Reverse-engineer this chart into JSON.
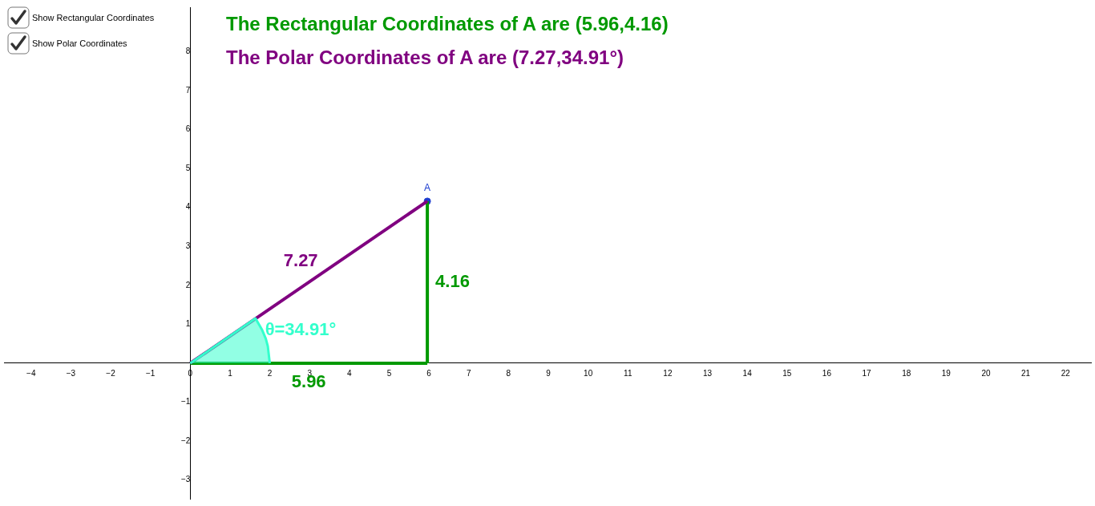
{
  "chart_data": {
    "type": "line",
    "title": "The Rectangular Coordinates of A are (5.96,4.16)",
    "subtitle": "The Polar Coordinates of A are (7.27,34.91°)",
    "annotations": [
      "Show Rectangular Coordinates",
      "Show Polar Coordinates",
      {
        "text": "7.27",
        "x": 2.98,
        "y": 2.08
      },
      {
        "text": "4.16",
        "x": 5.96,
        "y": 2.08
      },
      {
        "text": "5.96",
        "x": 2.98,
        "y": 0
      },
      {
        "text": "θ=34.91°",
        "x": 1.8,
        "y": 0.87
      }
    ],
    "xlim": [
      -4.68,
      22.64
    ],
    "ylim": [
      -3.48,
      9.14
    ],
    "xticks": [
      {
        "value": -4,
        "label": "−4"
      },
      {
        "value": -3,
        "label": "−3"
      },
      {
        "value": -2,
        "label": "−2"
      },
      {
        "value": -1,
        "label": "−1"
      },
      0,
      1,
      2,
      3,
      4,
      5,
      6,
      7,
      8,
      9,
      10,
      11,
      12,
      13,
      14,
      15,
      16,
      17,
      18,
      19,
      20,
      21,
      22
    ],
    "yticks": [
      {
        "value": -3,
        "label": "−3"
      },
      {
        "value": -2,
        "label": "−2"
      },
      {
        "value": -1,
        "label": "−1"
      },
      1,
      2,
      3,
      4,
      5,
      6,
      7,
      8
    ],
    "grid": false,
    "legend": false,
    "series": [
      {
        "type": "area",
        "color": "#33ffcc",
        "x": [
          0,
          1.64,
          1.8,
          1.9,
          1.95,
          2
        ],
        "values": [
          0,
          1.15,
          0.87,
          0.63,
          0.44,
          0
        ]
      },
      {
        "color": "#800080",
        "x": [
          0,
          5.96
        ],
        "values": [
          0,
          4.16
        ]
      },
      {
        "color": "#009900",
        "x": [
          0,
          5.96
        ],
        "values": [
          0,
          0
        ]
      },
      {
        "color": "#009900",
        "x": [
          5.96,
          5.96
        ],
        "values": [
          0,
          4.16
        ]
      },
      {
        "type": "scatter",
        "name": "A",
        "color": "#1c3ccf",
        "x": [
          5.96
        ],
        "values": [
          4.16
        ],
        "marker": "circle"
      }
    ]
  }
}
